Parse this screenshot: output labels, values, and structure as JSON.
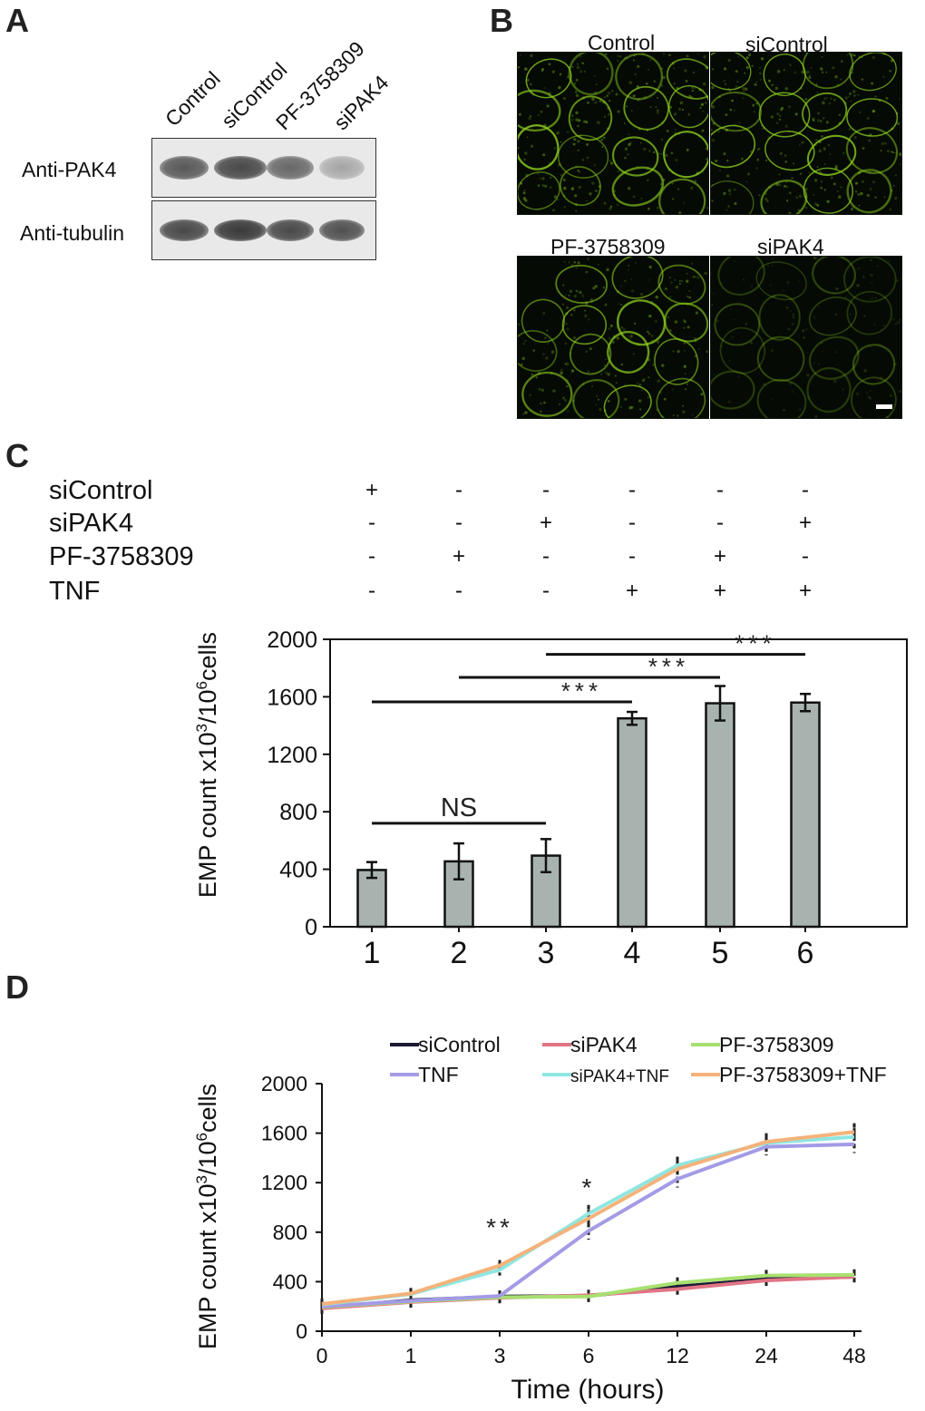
{
  "panels": {
    "a": "A",
    "b": "B",
    "c": "C",
    "d": "D"
  },
  "western_blot": {
    "columns": [
      "Control",
      "siControl",
      "PF-3758309",
      "siPAK4"
    ],
    "rows": [
      "Anti-PAK4",
      "Anti-tubulin"
    ],
    "pak4_intensity": [
      0.75,
      0.85,
      0.65,
      0.25
    ],
    "tubulin_intensity": [
      0.85,
      0.95,
      0.85,
      0.8
    ]
  },
  "microscopy": {
    "labels": [
      "Control",
      "siControl",
      "PF-3758309",
      "siPAK4"
    ],
    "stain_color": "#8fd11f"
  },
  "treatments": {
    "rows": [
      {
        "name": "siControl",
        "signs": [
          "+",
          "-",
          "-",
          "-",
          "-",
          "-"
        ]
      },
      {
        "name": "siPAK4",
        "signs": [
          "-",
          "-",
          "+",
          "-",
          "-",
          "+"
        ]
      },
      {
        "name": "PF-3758309",
        "signs": [
          "-",
          "+",
          "-",
          "-",
          "+",
          "-"
        ]
      },
      {
        "name": "TNF",
        "signs": [
          "-",
          "-",
          "-",
          "+",
          "+",
          "+"
        ]
      }
    ]
  },
  "chart_data": [
    {
      "type": "bar",
      "categories": [
        "1",
        "2",
        "3",
        "4",
        "5",
        "6"
      ],
      "values": [
        395,
        455,
        495,
        1450,
        1555,
        1560
      ],
      "errors": [
        55,
        125,
        115,
        45,
        120,
        60
      ],
      "ylabel_parts": [
        "EMP count x10",
        "3",
        "/10",
        "6",
        "cells"
      ],
      "ylim": [
        0,
        2000
      ],
      "yticks": [
        0,
        400,
        800,
        1200,
        1600,
        2000
      ],
      "bar_color": "#a8b3b0",
      "significance": [
        {
          "from": 1,
          "to": 3,
          "label": "NS",
          "level": 720
        },
        {
          "from": 1,
          "to": 4,
          "label": "***",
          "level": 1565
        },
        {
          "from": 2,
          "to": 5,
          "label": "***",
          "level": 1735
        },
        {
          "from": 3,
          "to": 6,
          "label": "***",
          "level": 1895
        }
      ]
    },
    {
      "type": "line",
      "x": [
        "0",
        "1",
        "3",
        "6",
        "12",
        "24",
        "48"
      ],
      "xlabel": "Time (hours)",
      "ylabel_parts": [
        "EMP count x10",
        "3",
        "/10",
        "6",
        "cells"
      ],
      "ylim": [
        0,
        2000
      ],
      "yticks": [
        0,
        400,
        800,
        1200,
        1600,
        2000
      ],
      "series": [
        {
          "name": "siControl",
          "color": "#1a1a33",
          "values": [
            190,
            250,
            280,
            285,
            360,
            420,
            440
          ]
        },
        {
          "name": "siPAK4",
          "color": "#e07585",
          "values": [
            185,
            235,
            270,
            290,
            340,
            410,
            440
          ]
        },
        {
          "name": "PF-3758309",
          "color": "#a8e070",
          "values": [
            195,
            240,
            275,
            280,
            390,
            450,
            455
          ]
        },
        {
          "name": "TNF",
          "color": "#a39be6",
          "values": [
            200,
            245,
            285,
            810,
            1230,
            1490,
            1510
          ]
        },
        {
          "name": "siPAK4+TNF",
          "color": "#8fe6e0",
          "values": [
            215,
            300,
            495,
            950,
            1340,
            1520,
            1570
          ]
        },
        {
          "name": "PF-3758309+TNF",
          "color": "#f5b27a",
          "values": [
            220,
            305,
            530,
            910,
            1310,
            1530,
            1610
          ]
        }
      ],
      "annotations": [
        {
          "x_index": 2,
          "label": "**",
          "level": 770
        },
        {
          "x_index": 3,
          "label": "*",
          "level": 1090
        }
      ]
    }
  ]
}
